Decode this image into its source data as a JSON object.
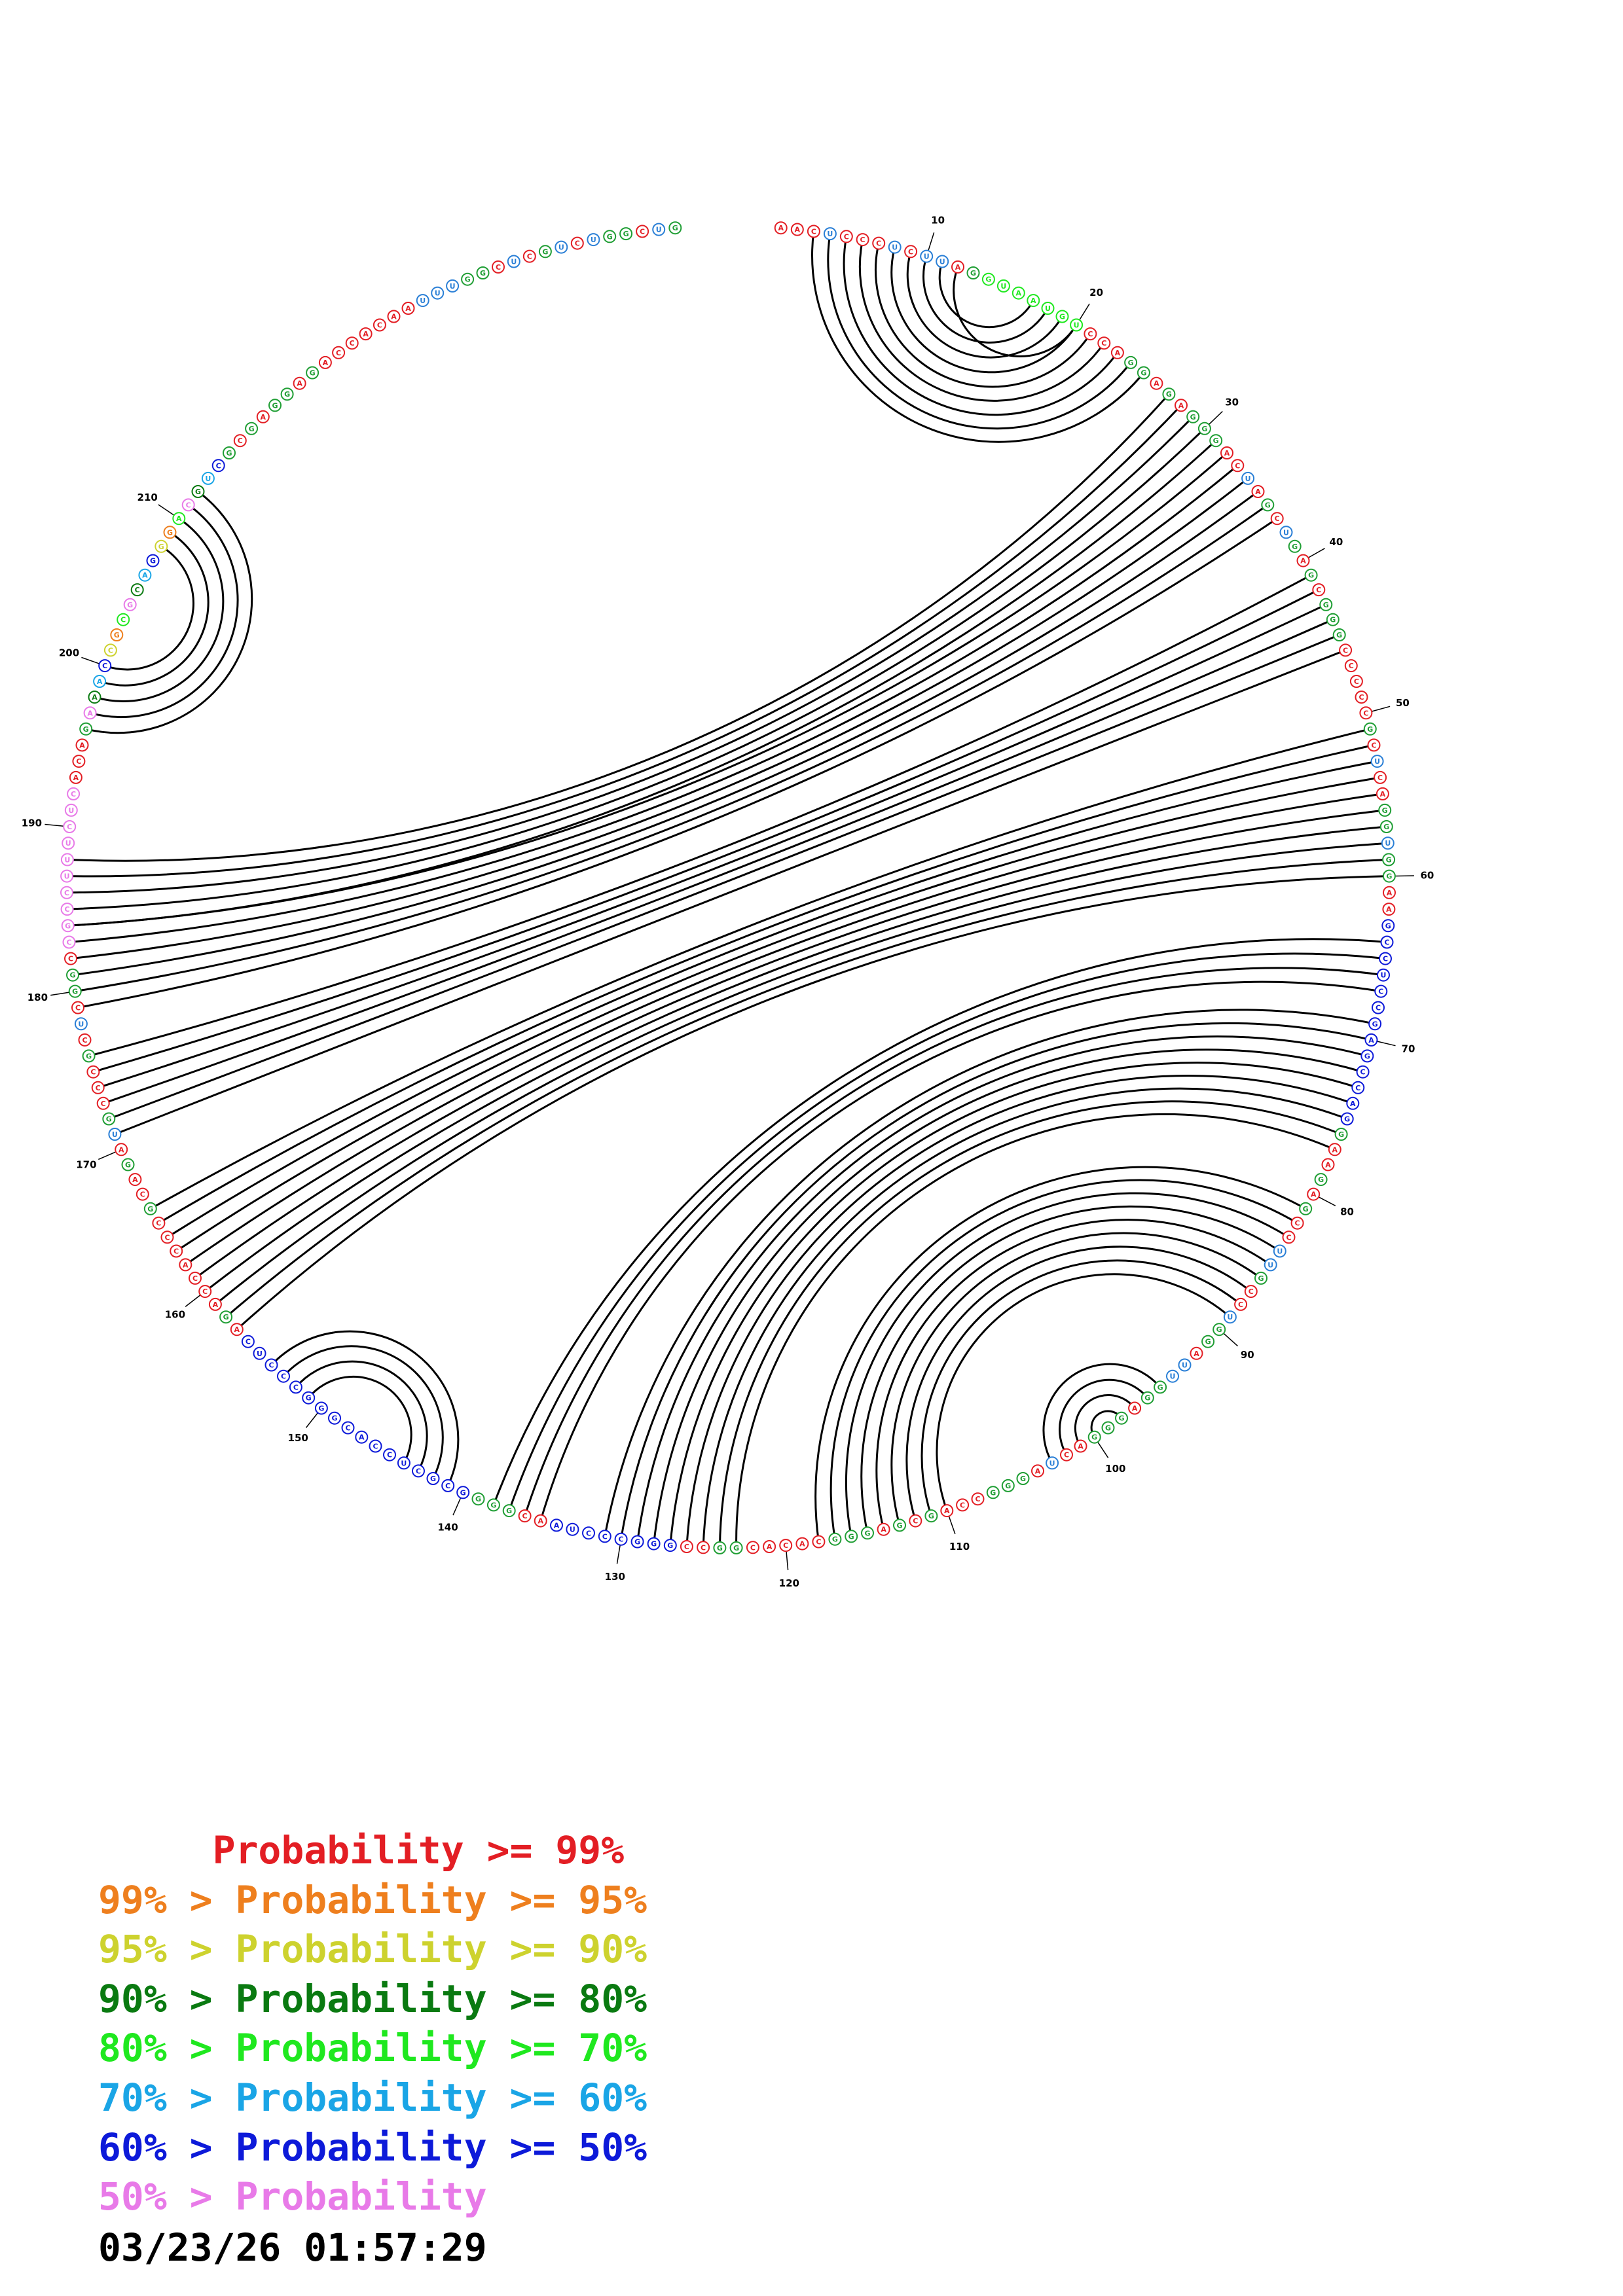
{
  "sequence": "AACUCCCUCUUAGGUAAUGUCCAGGAGAGGGACUAGCUGAGCGGGCCCCCGCUCAGGUGGAAGCCUCCGAGCCAGGAAGAGCCUUGCCUGGAUUGGAGGGACUAGGGCCAGCGAGGGCACACGGCCGGGCCCUAACGGGGCGCUCCACGGGCCCUCAGACCACCCGCAGAUGCCCGCUCGGCCGCCUUUCUCACAGAAACCGCGCAGGGACGUCGCGAGGAGACCACAAUUUGGCUCGUCUGGCUG",
  "position_labels": [
    "10",
    "20",
    "30",
    "40",
    "50",
    "60",
    "70",
    "80",
    "90",
    "100",
    "110",
    "120",
    "130",
    "140",
    "150",
    "160",
    "170",
    "180",
    "190",
    "200",
    "210"
  ],
  "helices": [
    {
      "i": 3,
      "j": 25,
      "len": 9
    },
    {
      "i": 12,
      "j": 20,
      "len": 1
    },
    {
      "i": 27,
      "j": 188,
      "len": 5
    },
    {
      "i": 32,
      "j": 184,
      "len": 6
    },
    {
      "i": 41,
      "j": 176,
      "len": 6
    },
    {
      "i": 51,
      "j": 166,
      "len": 10
    },
    {
      "i": 64,
      "j": 138,
      "len": 4
    },
    {
      "i": 69,
      "j": 131,
      "len": 9
    },
    {
      "i": 81,
      "j": 118,
      "len": 9
    },
    {
      "i": 95,
      "j": 103,
      "len": 4
    },
    {
      "i": 141,
      "j": 154,
      "len": 4
    },
    {
      "i": 196,
      "j": 212,
      "len": 5
    }
  ],
  "colors": {
    "A": "#e31e24",
    "C": "#e31e24",
    "G": "#1f9e34",
    "U": "#2a7fd6",
    "conf_orange": "#ee7f1e",
    "conf_yellow": "#cdd22e",
    "conf_dkgreen": "#0a7a11",
    "conf_green": "#1fe81f",
    "conf_cyan": "#1aa5e6",
    "conf_blue": "#0d1ad9",
    "conf_pink": "#e87ae8",
    "arc": "#000000"
  },
  "legend": [
    {
      "text": "     Probability >= 99%",
      "color": "#e31e24"
    },
    {
      "text": "99% > Probability >= 95%",
      "color": "#ee7f1e"
    },
    {
      "text": "95% > Probability >= 90%",
      "color": "#cdd22e"
    },
    {
      "text": "90% > Probability >= 80%",
      "color": "#0a7a11"
    },
    {
      "text": "80% > Probability >= 70%",
      "color": "#1fe81f"
    },
    {
      "text": "70% > Probability >= 60%",
      "color": "#1aa5e6"
    },
    {
      "text": "60% > Probability >= 50%",
      "color": "#0d1ad9"
    },
    {
      "text": "50% > Probability",
      "color": "#e87ae8"
    }
  ],
  "timestamp": "03/23/26 01:57:29"
}
